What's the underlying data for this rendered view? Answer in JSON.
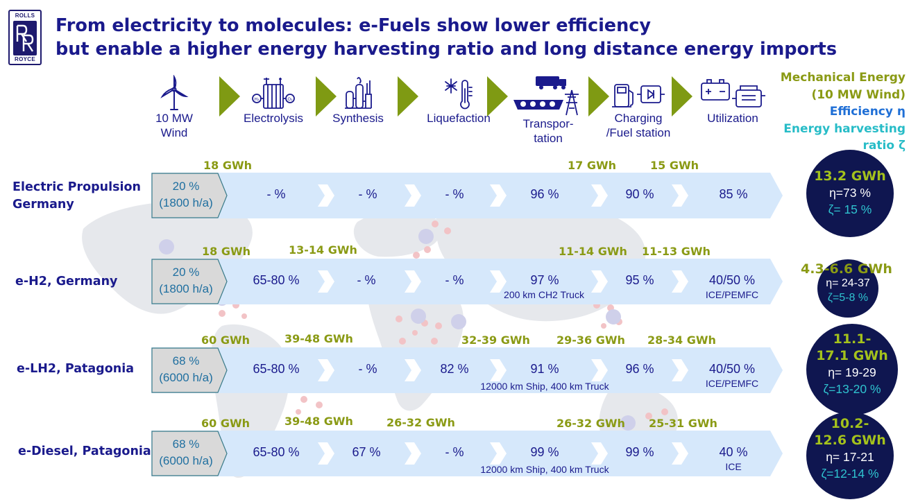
{
  "title": {
    "line1": "From electricity to molecules: e-Fuels show lower efficiency",
    "line2": "but enable a higher energy harvesting ratio and long distance energy imports"
  },
  "logo": {
    "top": "ROLLS",
    "bottom": "ROYCE"
  },
  "stages": [
    {
      "label_l1": "10 MW",
      "label_l2": "Wind",
      "icon": "wind-turbine-icon"
    },
    {
      "label_l1": "Electrolysis",
      "label_l2": "",
      "icon": "electrolyzer-icon"
    },
    {
      "label_l1": "Synthesis",
      "label_l2": "",
      "icon": "chemical-plant-icon"
    },
    {
      "label_l1": "Liquefaction",
      "label_l2": "",
      "icon": "cryogenic-thermometer-icon"
    },
    {
      "label_l1": "Transpor-",
      "label_l2": "tation",
      "icon": "truck-ship-pylon-icon"
    },
    {
      "label_l1": "Charging",
      "label_l2": "/Fuel station",
      "icon": "fuel-charging-station-icon"
    },
    {
      "label_l1": "Utilization",
      "label_l2": "",
      "icon": "battery-engine-icon"
    }
  ],
  "legend": {
    "mechanical_l1": "Mechanical Energy",
    "mechanical_l2": "(10 MW Wind)",
    "efficiency": "Efficiency η",
    "harvesting_l1": "Energy harvesting",
    "harvesting_l2": "ratio ζ"
  },
  "colors": {
    "navy": "#1a1a8c",
    "olive": "#8a9a14",
    "band": "#d6e8fb",
    "circle": "#0f1650",
    "cyan": "#27bcc7",
    "blue": "#1f6fd6"
  },
  "rows": [
    {
      "label_l1": "Electric Propulsion",
      "label_l2": "Germany",
      "first_l1": "20 %",
      "first_l2": "(1800 h/a)",
      "cells": [
        "- %",
        "- %",
        "- %",
        "96 %",
        "90 %",
        "85 %"
      ],
      "notes": {
        "transport": "",
        "utilization": ""
      },
      "energy": {
        "start": "18 GWh",
        "electrolysis": "",
        "synthesis": "",
        "liquefaction": "17 GWh",
        "transport": "15 GWh",
        "fuel": ""
      },
      "result": {
        "gwh_l1": "13.2 GWh",
        "gwh_l2": "",
        "eta": "η=73 %",
        "zeta": "ζ= 15 %"
      }
    },
    {
      "label_l1": "e-H2, Germany",
      "label_l2": "",
      "first_l1": "20 %",
      "first_l2": "(1800 h/a)",
      "cells": [
        "65-80 %",
        "- %",
        "- %",
        "97 %",
        "95 %",
        "40/50 %"
      ],
      "notes": {
        "transport": "200 km CH2 Truck",
        "utilization": "ICE/PEMFC"
      },
      "energy": {
        "start": "18 GWh",
        "electrolysis": "13-14 GWh",
        "synthesis": "",
        "liquefaction": "11-14 GWh",
        "transport": "11-13 GWh",
        "fuel": ""
      },
      "result": {
        "gwh_l1": "4.3-6.6 GWh",
        "gwh_l2": "",
        "eta": "η= 24-37",
        "zeta": "ζ=5-8 %"
      }
    },
    {
      "label_l1": "e-LH2, Patagonia",
      "label_l2": "",
      "first_l1": "68 %",
      "first_l2": "(6000 h/a)",
      "cells": [
        "65-80 %",
        "- %",
        "82 %",
        "91 %",
        "96 %",
        "40/50 %"
      ],
      "notes": {
        "transport": "12000 km Ship, 400 km Truck",
        "utilization": "ICE/PEMFC"
      },
      "energy": {
        "start": "60 GWh",
        "electrolysis": "39-48 GWh",
        "synthesis": "32-39 GWh",
        "liquefaction": "29-36 GWh",
        "transport": "28-34 GWh",
        "fuel": ""
      },
      "result": {
        "gwh_l1": "11.1-",
        "gwh_l2": "17.1 GWh",
        "eta": "η= 19-29",
        "zeta": "ζ=13-20 %"
      }
    },
    {
      "label_l1": "e-Diesel, Patagonia",
      "label_l2": "",
      "first_l1": "68 %",
      "first_l2": "(6000 h/a)",
      "cells": [
        "65-80 %",
        "67 %",
        "- %",
        "99 %",
        "99 %",
        "40 %"
      ],
      "notes": {
        "transport": "12000 km Ship, 400 km Truck",
        "utilization": "ICE"
      },
      "energy": {
        "start": "60 GWh",
        "electrolysis": "39-48 GWh",
        "synthesis": "26-32 GWh",
        "liquefaction": "26-32 GWh",
        "transport": "25-31 GWh",
        "fuel": ""
      },
      "result": {
        "gwh_l1": "10.2-",
        "gwh_l2": "12.6 GWh",
        "eta": "η= 17-21",
        "zeta": "ζ=12-14 %"
      }
    }
  ]
}
